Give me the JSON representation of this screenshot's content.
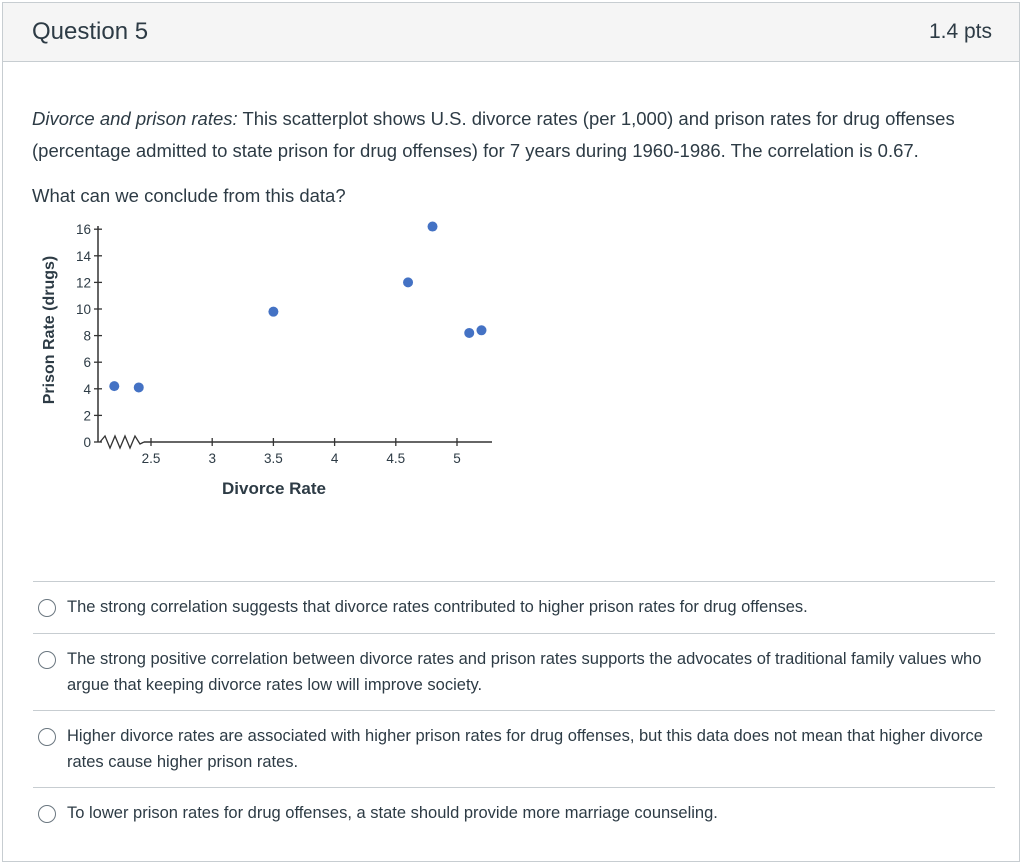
{
  "question": {
    "title": "Question 5",
    "points": "1.4 pts",
    "intro_italic": "Divorce and prison rates:",
    "intro_rest": " This scatterplot shows U.S. divorce rates (per 1,000) and prison rates for drug offenses (percentage admitted to state prison for drug offenses) for 7 years during 1960-1986. The correlation is 0.67.",
    "prompt": "What can we conclude from this data?"
  },
  "answers": [
    {
      "label": "The strong correlation suggests that divorce rates contributed to higher prison rates for drug offenses."
    },
    {
      "label": "The strong positive correlation between divorce rates and prison rates supports the advocates of traditional family values who argue that keeping divorce rates low will improve society."
    },
    {
      "label": "Higher divorce rates are associated with higher prison rates for drug offenses, but this data does not mean that higher divorce rates cause higher prison rates."
    },
    {
      "label": "To lower prison rates for drug offenses, a state should provide more marriage counseling."
    }
  ],
  "chart_data": {
    "type": "scatter",
    "xlabel": "Divorce Rate",
    "ylabel": "Prison Rate (drugs)",
    "x_ticks": [
      2.5,
      3,
      3.5,
      4,
      4.5,
      5
    ],
    "y_ticks": [
      0,
      2,
      4,
      6,
      8,
      10,
      12,
      14,
      16
    ],
    "xlim": [
      2.3,
      5.4
    ],
    "ylim": [
      0,
      17
    ],
    "x_axis_break": true,
    "grid": false,
    "points": [
      {
        "x": 2.2,
        "y": 4.2
      },
      {
        "x": 2.4,
        "y": 4.1
      },
      {
        "x": 3.5,
        "y": 9.8
      },
      {
        "x": 4.6,
        "y": 12.0
      },
      {
        "x": 4.8,
        "y": 16.2
      },
      {
        "x": 5.1,
        "y": 8.2
      },
      {
        "x": 5.2,
        "y": 8.4
      }
    ],
    "point_color": "#4472c4"
  }
}
